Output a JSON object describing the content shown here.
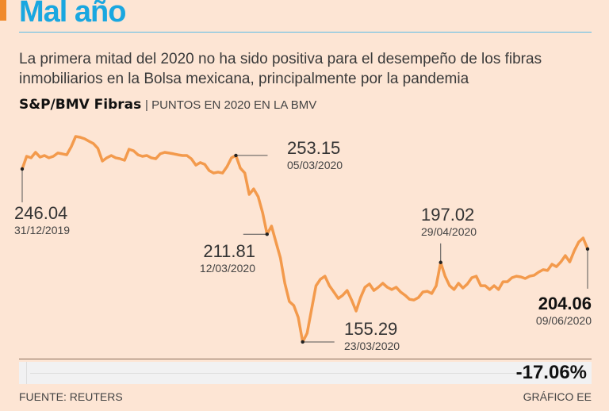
{
  "header": {
    "title": "Mal año",
    "subtitle": "La primera mitad del 2020 no ha sido positiva para el desempeño de los fibras inmobiliarios en la Bolsa mexicana, principalmente por la pandemia"
  },
  "chart_data": {
    "type": "line",
    "title": "S&P/BMV Fibras",
    "subtitle": "| PUNTOS EN 2020 EN LA BMV",
    "xlabel": "",
    "ylabel": "",
    "xrange": [
      "31/12/2019",
      "09/06/2020"
    ],
    "series": [
      {
        "name": "S&P/BMV Fibras",
        "color": "#f39a4c",
        "values": [
          246.04,
          252.7,
          251.9,
          254.8,
          252.3,
          253.1,
          251.9,
          252.7,
          254.4,
          254.0,
          253.5,
          257.7,
          263.1,
          262.7,
          261.9,
          260.6,
          259.4,
          256.9,
          250.2,
          251.9,
          253.1,
          251.9,
          251.4,
          250.6,
          256.4,
          255.6,
          253.5,
          252.7,
          253.1,
          251.9,
          251.4,
          254.0,
          254.8,
          254.4,
          254.0,
          253.5,
          253.1,
          253.1,
          251.4,
          248.1,
          249.4,
          248.5,
          245.2,
          243.9,
          244.4,
          243.9,
          247.3,
          251.9,
          253.15,
          246.5,
          243.9,
          232.7,
          235.6,
          231.5,
          223.1,
          211.81,
          216.1,
          207.7,
          199.4,
          186.1,
          176.5,
          174.4,
          168.2,
          155.29,
          159.9,
          172.4,
          184.8,
          188.2,
          189.8,
          184.8,
          181.5,
          178.1,
          179.8,
          182.3,
          177.3,
          171.5,
          178.6,
          184.0,
          185.7,
          182.3,
          184.0,
          186.1,
          184.0,
          182.8,
          184.0,
          181.5,
          179.8,
          177.7,
          177.3,
          178.6,
          181.5,
          181.9,
          180.7,
          184.8,
          197.02,
          189.8,
          184.8,
          182.8,
          186.1,
          183.6,
          185.7,
          189.0,
          189.8,
          184.8,
          184.8,
          182.8,
          184.8,
          182.8,
          186.9,
          186.9,
          189.0,
          189.8,
          189.4,
          188.6,
          189.8,
          190.3,
          191.9,
          193.2,
          192.8,
          196.1,
          194.8,
          197.3,
          200.6,
          197.3,
          203.1,
          207.7,
          209.8,
          204.06
        ]
      }
    ],
    "annotations": [
      {
        "value": "246.04",
        "date": "31/12/2019",
        "index": 0
      },
      {
        "value": "253.15",
        "date": "05/03/2020",
        "index": 48
      },
      {
        "value": "211.81",
        "date": "12/03/2020",
        "index": 55
      },
      {
        "value": "155.29",
        "date": "23/03/2020",
        "index": 63
      },
      {
        "value": "197.02",
        "date": "29/04/2020",
        "index": 94
      },
      {
        "value": "204.06",
        "date": "09/06/2020",
        "index": 127
      }
    ],
    "change": "-17.06%"
  },
  "footer": {
    "source": "FUENTE: REUTERS",
    "credit": "GRÁFICO EE"
  }
}
